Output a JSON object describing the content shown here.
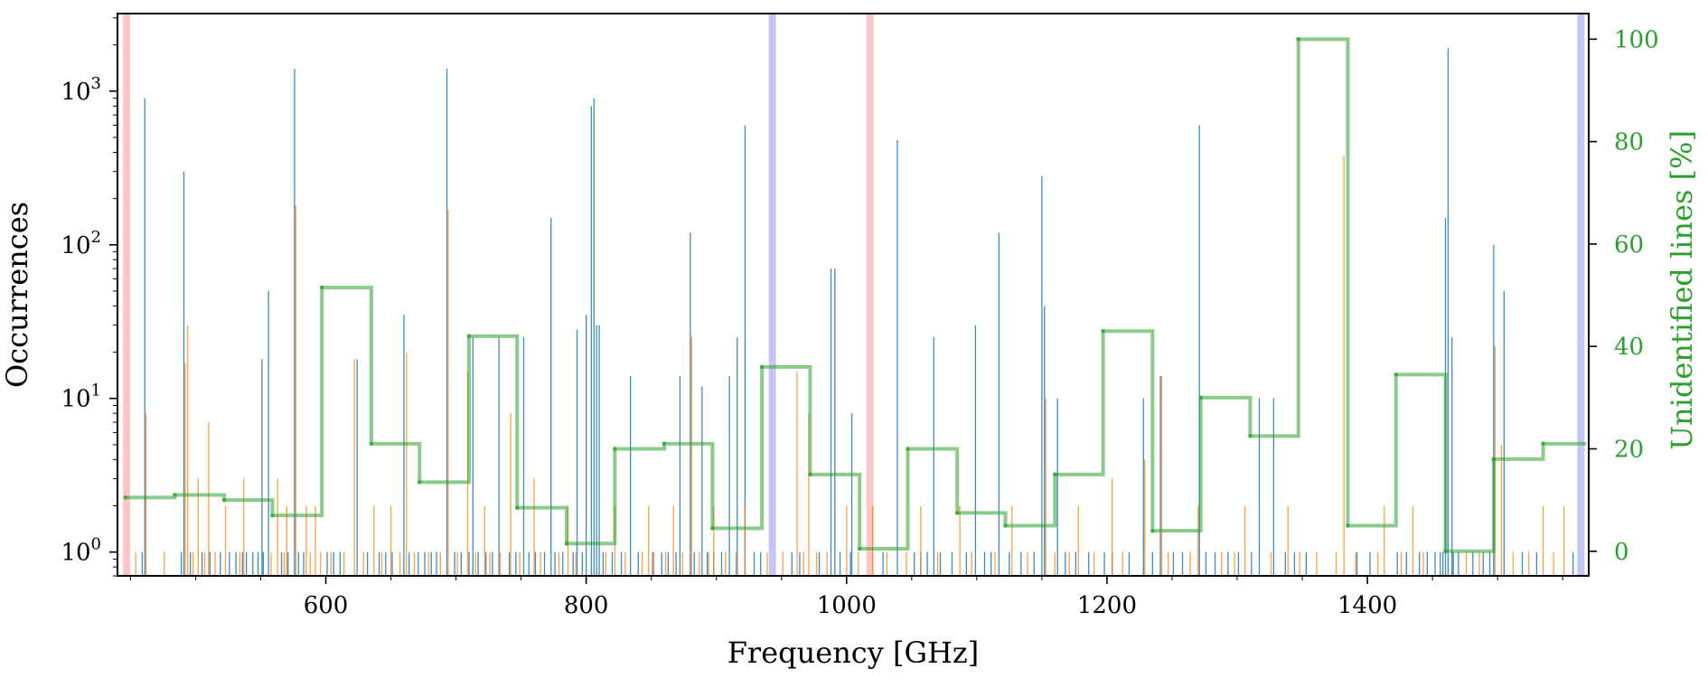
{
  "chart_data": {
    "type": "bar",
    "title": "",
    "xlabel": "Frequency [GHz]",
    "ylabel": "Occurrences",
    "y2label": "Unidentified lines [%]",
    "xlim": [
      440,
      1570
    ],
    "ylim": [
      0.7,
      3200
    ],
    "y2lim": [
      -4.8,
      105
    ],
    "yscale": "log",
    "x_ticks": [
      600,
      800,
      1000,
      1200,
      1400
    ],
    "x_tick_labels": [
      "600",
      "800",
      "1000",
      "1200",
      "1400"
    ],
    "y_ticks": [
      1,
      10,
      100,
      1000
    ],
    "y_tick_labels": [
      {
        "base": "10",
        "exp": "0"
      },
      {
        "base": "10",
        "exp": "1"
      },
      {
        "base": "10",
        "exp": "2"
      },
      {
        "base": "10",
        "exp": "3"
      }
    ],
    "y2_ticks": [
      0,
      20,
      40,
      60,
      80,
      100
    ],
    "y2_tick_labels": [
      "0",
      "20",
      "40",
      "60",
      "80",
      "100"
    ],
    "colors": {
      "identified": "#1f77b4",
      "unidentified": "#ff7f0e",
      "fraction": "#2ca02c",
      "band_red": "#ffb3b3",
      "band_blue": "#b3b3f0"
    },
    "bands": [
      {
        "x": 447,
        "color": "red"
      },
      {
        "x": 943,
        "color": "blue"
      },
      {
        "x": 1018,
        "color": "red"
      },
      {
        "x": 1564,
        "color": "blue"
      }
    ],
    "series": [
      {
        "name": "identified",
        "freq": [
          461,
          491,
          551,
          556,
          576,
          624,
          660,
          693,
          713,
          733,
          752,
          773,
          793,
          800,
          804,
          806,
          808,
          810,
          834,
          872,
          880,
          889,
          910,
          916,
          922,
          988,
          991,
          1004,
          1039,
          1067,
          1099,
          1117,
          1150,
          1152,
          1162,
          1228,
          1241,
          1271,
          1317,
          1328,
          1460,
          1462,
          1465,
          1497,
          1505
        ],
        "count": [
          900,
          300,
          18,
          50,
          1400,
          18,
          35,
          1400,
          25,
          25,
          25,
          150,
          28,
          35,
          800,
          900,
          30,
          30,
          14,
          14,
          120,
          12,
          14,
          25,
          600,
          70,
          70,
          8,
          480,
          25,
          30,
          120,
          280,
          40,
          10,
          10,
          14,
          600,
          10,
          10,
          150,
          1900,
          25,
          100,
          50
        ],
        "small_freq": [
          459,
          489,
          496,
          505,
          511,
          519,
          526,
          531,
          536,
          539,
          544,
          548,
          552,
          566,
          571,
          579,
          583,
          601,
          606,
          611,
          632,
          641,
          646,
          651,
          664,
          671,
          676,
          681,
          685,
          699,
          704,
          710,
          717,
          723,
          728,
          741,
          746,
          756,
          761,
          768,
          776,
          782,
          790,
          797,
          813,
          820,
          827,
          840,
          851,
          858,
          863,
          869,
          883,
          893,
          898,
          904,
          929,
          934,
          958,
          964,
          979,
          995,
          1003,
          1028,
          1052,
          1057,
          1062,
          1072,
          1081,
          1092,
          1106,
          1111,
          1125,
          1134,
          1144,
          1168,
          1176,
          1186,
          1198,
          1204,
          1217,
          1235,
          1251,
          1258,
          1276,
          1283,
          1293,
          1301,
          1311,
          1337,
          1344,
          1353,
          1392,
          1402,
          1423,
          1430,
          1440,
          1446,
          1452,
          1456,
          1458,
          1466,
          1470,
          1481,
          1489,
          1494,
          1519,
          1530,
          1558
        ],
        "small_count": [
          1,
          1,
          1,
          1,
          1,
          1,
          1,
          1,
          1,
          1,
          1,
          1,
          1,
          1,
          1,
          1,
          1,
          1,
          1,
          1,
          1,
          1,
          1,
          1,
          1,
          1,
          1,
          1,
          1,
          1,
          1,
          1,
          1,
          1,
          1,
          1,
          1,
          1,
          1,
          1,
          1,
          1,
          1,
          1,
          1,
          1,
          1,
          1,
          1,
          1,
          1,
          1,
          1,
          1,
          1,
          1,
          1,
          1,
          1,
          1,
          1,
          1,
          1,
          1,
          1,
          1,
          1,
          1,
          1,
          1,
          1,
          1,
          1,
          1,
          1,
          1,
          1,
          1,
          1,
          1,
          1,
          1,
          1,
          1,
          1,
          1,
          1,
          1,
          1,
          1,
          1,
          1,
          1,
          1,
          1,
          1,
          1,
          1,
          1,
          1,
          1,
          1,
          1,
          1,
          1,
          1,
          1,
          1,
          1
        ]
      },
      {
        "name": "unidentified",
        "freq": [
          462,
          492,
          494,
          502,
          510,
          523,
          537,
          563,
          570,
          577,
          585,
          592,
          622,
          637,
          650,
          662,
          694,
          709,
          722,
          742,
          760,
          786,
          822,
          848,
          867,
          881,
          898,
          922,
          962,
          971,
          1000,
          1020,
          1057,
          1087,
          1127,
          1153,
          1178,
          1204,
          1229,
          1242,
          1270,
          1306,
          1339,
          1382,
          1413,
          1435,
          1498,
          1503,
          1535,
          1551
        ],
        "count": [
          8,
          17,
          30,
          3,
          7,
          2,
          3,
          3,
          2,
          180,
          2,
          2,
          18,
          2,
          2,
          20,
          170,
          15,
          2,
          8,
          3,
          2,
          2,
          2,
          2,
          25,
          2,
          2,
          15,
          8,
          2,
          2,
          2,
          2,
          2,
          10,
          2,
          3,
          4,
          14,
          2,
          2,
          2,
          380,
          2,
          2,
          22,
          5,
          2,
          2
        ],
        "small_freq": [
          454,
          476,
          498,
          507,
          515,
          534,
          558,
          568,
          588,
          596,
          604,
          614,
          629,
          643,
          657,
          668,
          679,
          688,
          701,
          715,
          726,
          734,
          749,
          765,
          779,
          792,
          815,
          830,
          843,
          852,
          861,
          874,
          887,
          894,
          907,
          915,
          939,
          951,
          967,
          977,
          985,
          1009,
          1031,
          1046,
          1070,
          1096,
          1114,
          1139,
          1160,
          1171,
          1190,
          1212,
          1247,
          1264,
          1288,
          1298,
          1326,
          1348,
          1361,
          1376,
          1391,
          1408,
          1426,
          1443,
          1476,
          1486,
          1512,
          1524,
          1543
        ],
        "small_count": [
          1,
          1,
          1,
          1,
          1,
          1,
          1,
          1,
          1,
          1,
          1,
          1,
          1,
          1,
          1,
          1,
          1,
          1,
          1,
          1,
          1,
          1,
          1,
          1,
          1,
          1,
          1,
          1,
          1,
          1,
          1,
          1,
          1,
          1,
          1,
          1,
          1,
          1,
          1,
          1,
          1,
          1,
          1,
          1,
          1,
          1,
          1,
          1,
          1,
          1,
          1,
          1,
          1,
          1,
          1,
          1,
          1,
          1,
          1,
          1,
          1,
          1,
          1,
          1,
          1,
          1,
          1,
          1,
          1
        ]
      }
    ],
    "fraction_line": {
      "name": "Unidentified lines [%]",
      "edges": [
        446,
        484,
        522,
        559,
        597,
        635,
        672,
        710,
        747,
        785,
        822,
        860,
        897,
        935,
        972,
        1010,
        1047,
        1085,
        1122,
        1160,
        1197,
        1235,
        1272,
        1310,
        1347,
        1385,
        1422,
        1460,
        1497,
        1535,
        1568
      ],
      "values": [
        10.5,
        11,
        10,
        7,
        51.5,
        21,
        13.5,
        42,
        8.5,
        1.5,
        20,
        21,
        4.5,
        36,
        15,
        0.5,
        20,
        7.5,
        5,
        15,
        43,
        4,
        30,
        22.5,
        100,
        5,
        34.5,
        0,
        18,
        21
      ]
    }
  }
}
